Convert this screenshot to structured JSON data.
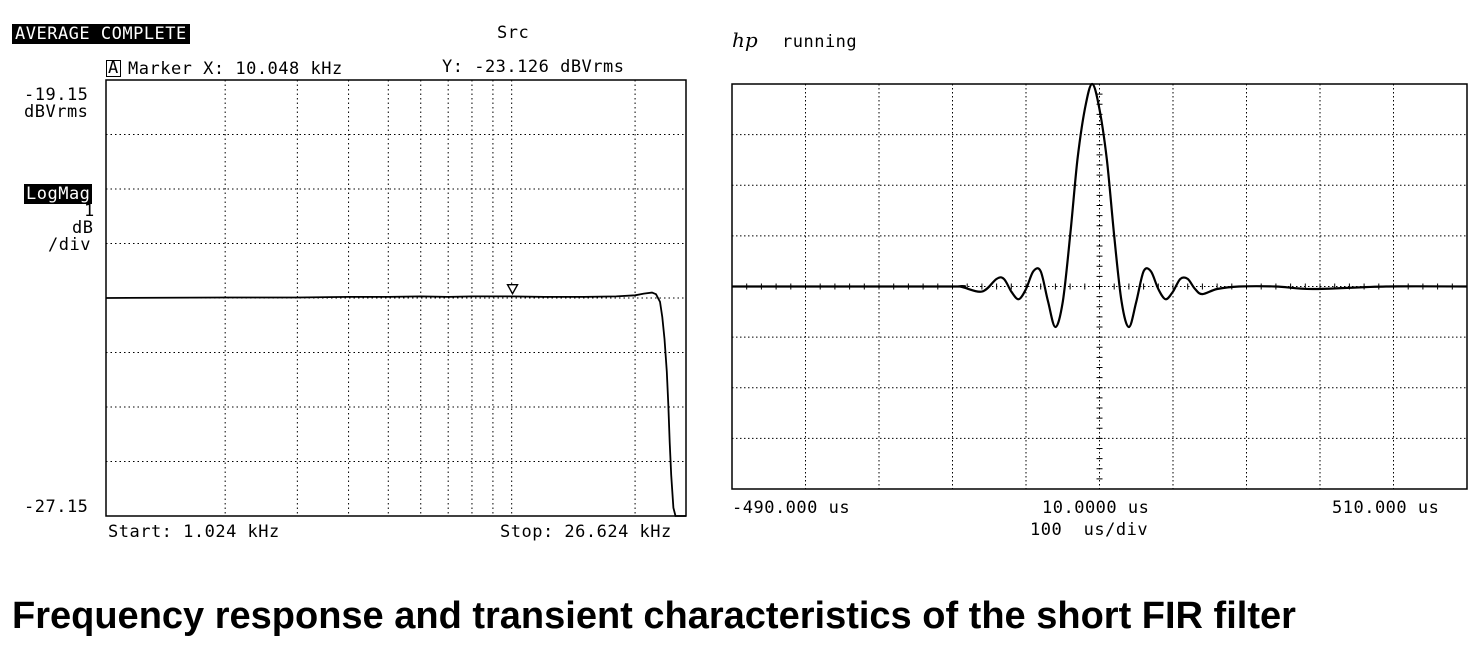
{
  "caption": "Frequency response and transient characteristics of the short FIR filter",
  "left_panel": {
    "status": "AVERAGE COMPLETE",
    "channel": "Src",
    "marker_box": "A",
    "marker_x": "Marker X: 10.048 kHz",
    "marker_y": "Y: -23.126 dBVrms",
    "y_top_value": "-19.15",
    "y_top_unit": "dBVrms",
    "format_label": "LogMag",
    "scale_value": "1",
    "scale_unit": "dB",
    "scale_div": "/div",
    "y_bottom_value": "-27.15",
    "start_label": "Start: 1.024 kHz",
    "stop_label": "Stop: 26.624 kHz"
  },
  "right_panel": {
    "brand": "hp",
    "state": "running",
    "x_left_label": "-490.000 us",
    "x_center_label": "10.0000 us",
    "x_right_label": "510.000 us",
    "time_div_label": "100  us/div"
  },
  "chart_data": [
    {
      "type": "line",
      "title": "",
      "xlabel": "",
      "ylabel": "",
      "x_scale": "log",
      "xlim": [
        1.024,
        26.624
      ],
      "ylim": [
        -27.15,
        -19.15
      ],
      "grid": true,
      "x_gridlines": [
        1.024,
        2,
        3,
        4,
        5,
        6,
        7,
        8,
        9,
        10,
        20
      ],
      "y_step": 1,
      "marker": {
        "x": 10.048,
        "y": -23.126
      },
      "series": [
        {
          "x": [
            1.024,
            2,
            3,
            4,
            5,
            6,
            7,
            8,
            9,
            10,
            12,
            15,
            18,
            20,
            21,
            22,
            22.5,
            23.0,
            23.3,
            23.6,
            23.9,
            24.1,
            24.3,
            24.5,
            24.8,
            25.1,
            25.5,
            26.624
          ],
          "y": [
            -23.15,
            -23.14,
            -23.14,
            -23.13,
            -23.13,
            -23.12,
            -23.13,
            -23.12,
            -23.12,
            -23.12,
            -23.13,
            -23.13,
            -23.12,
            -23.1,
            -23.07,
            -23.05,
            -23.08,
            -23.22,
            -23.5,
            -23.9,
            -24.5,
            -25.1,
            -25.8,
            -26.4,
            -27.0,
            -27.15,
            -27.15,
            -27.15
          ]
        }
      ]
    },
    {
      "type": "line",
      "title": "",
      "xlabel": "",
      "ylabel": "",
      "xlim": [
        -490,
        510
      ],
      "ylim": [
        -4,
        4
      ],
      "y_divisions": 8,
      "x_divisions": 10,
      "grid": true,
      "series": [
        {
          "x": [
            -490,
            -200,
            -180,
            -150,
            -130,
            -120,
            -110,
            -100,
            -90,
            -80,
            -70,
            -60,
            -50,
            -40,
            -30,
            -20,
            -10,
            0,
            10,
            20,
            30,
            40,
            50,
            60,
            70,
            80,
            90,
            100,
            110,
            120,
            130,
            140,
            150,
            170,
            200,
            250,
            300,
            400,
            510
          ],
          "y": [
            0,
            0,
            0,
            -0.1,
            0.15,
            0.15,
            -0.1,
            -0.25,
            -0.05,
            0.3,
            0.3,
            -0.3,
            -0.8,
            -0.3,
            1.0,
            2.5,
            3.5,
            4.0,
            3.5,
            2.5,
            1.0,
            -0.3,
            -0.8,
            -0.3,
            0.3,
            0.3,
            -0.05,
            -0.25,
            -0.1,
            0.15,
            0.15,
            -0.05,
            -0.15,
            -0.05,
            0,
            0,
            -0.05,
            0,
            0
          ]
        }
      ]
    }
  ]
}
